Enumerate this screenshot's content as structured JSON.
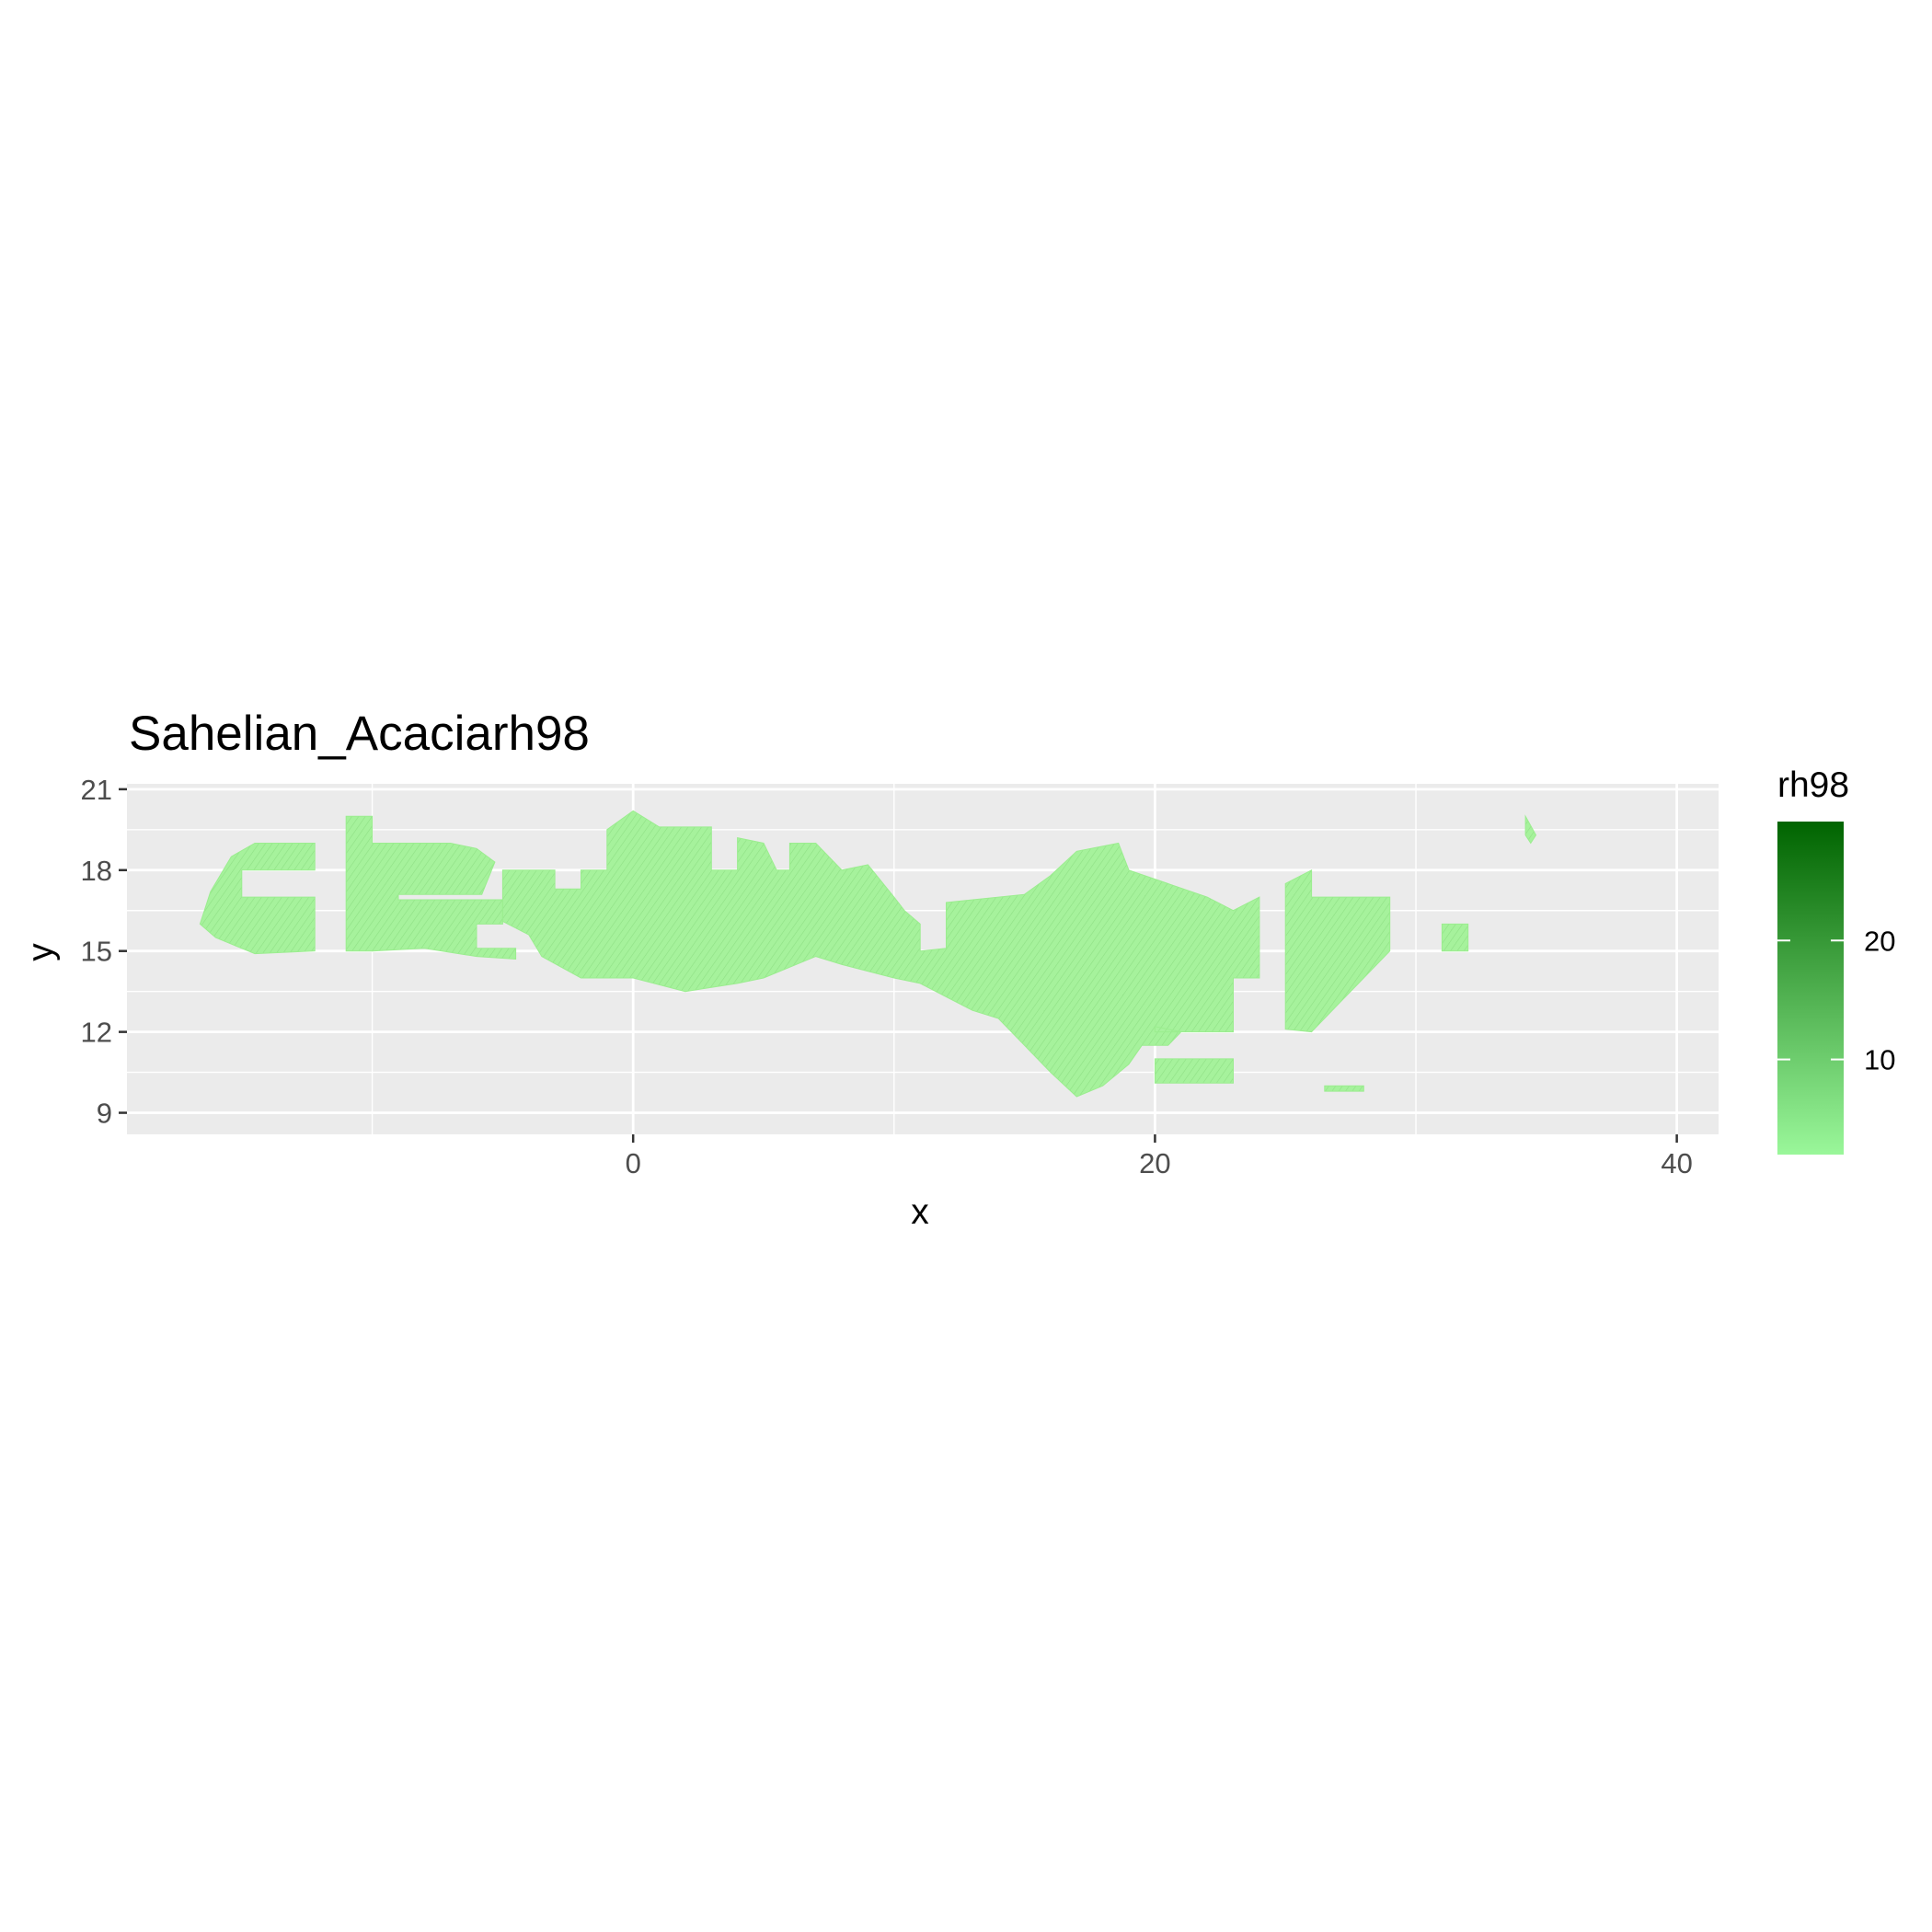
{
  "chart_data": {
    "type": "heatmap",
    "title": "Sahelian_Acaciarh98",
    "xlabel": "x",
    "ylabel": "y",
    "xlim": [
      -19.4,
      41.6
    ],
    "ylim": [
      8.2,
      21.2
    ],
    "x_ticks": [
      0,
      20,
      40
    ],
    "x_tick_labels": [
      "0",
      "20",
      "40"
    ],
    "x_minor_ticks": [
      -10,
      10,
      30
    ],
    "y_ticks": [
      9,
      12,
      15,
      18,
      21
    ],
    "y_tick_labels": [
      "9",
      "12",
      "15",
      "18",
      "21"
    ],
    "y_minor_ticks": [
      10.5,
      13.5,
      16.5,
      19.5
    ],
    "legend": {
      "title": "rh98",
      "min": 2,
      "max": 30,
      "ticks": [
        10,
        20
      ],
      "tick_labels": [
        "10",
        "20"
      ],
      "low_color": "#9af79a",
      "high_color": "#006400",
      "placement": "right"
    },
    "raster_color": "#9bed8f",
    "raster_dark_color": "#5fc35a",
    "regions": [
      {
        "name": "western-blob",
        "polygon": [
          [
            -16.6,
            16.0
          ],
          [
            -16.2,
            17.2
          ],
          [
            -15.4,
            18.5
          ],
          [
            -14.5,
            19.0
          ],
          [
            -12.2,
            19.0
          ],
          [
            -12.2,
            18.0
          ],
          [
            -15.0,
            18.0
          ],
          [
            -15.0,
            17.0
          ],
          [
            -12.2,
            17.0
          ],
          [
            -12.2,
            15.0
          ],
          [
            -14.5,
            14.9
          ],
          [
            -16.0,
            15.5
          ]
        ]
      },
      {
        "name": "northwest-block",
        "polygon": [
          [
            -11.0,
            20.0
          ],
          [
            -10.0,
            20.0
          ],
          [
            -10.0,
            19.0
          ],
          [
            -7.0,
            19.0
          ],
          [
            -6.0,
            18.8
          ],
          [
            -5.3,
            18.3
          ],
          [
            -5.8,
            17.1
          ],
          [
            -9.0,
            17.1
          ],
          [
            -9.0,
            16.9
          ],
          [
            -5.0,
            16.9
          ],
          [
            -5.0,
            16.0
          ],
          [
            -6.0,
            16.0
          ],
          [
            -6.0,
            15.1
          ],
          [
            -4.5,
            15.1
          ],
          [
            -4.5,
            14.7
          ],
          [
            -6.0,
            14.8
          ],
          [
            -8.0,
            15.1
          ],
          [
            -10.0,
            15.0
          ],
          [
            -11.0,
            15.0
          ]
        ]
      },
      {
        "name": "niger-bend",
        "polygon": [
          [
            -5.0,
            18.0
          ],
          [
            -3.0,
            18.0
          ],
          [
            -3.0,
            17.3
          ],
          [
            -2.0,
            17.3
          ],
          [
            -2.0,
            18.0
          ],
          [
            -1.0,
            18.0
          ],
          [
            -1.0,
            19.5
          ],
          [
            0.0,
            20.2
          ],
          [
            1.0,
            19.6
          ],
          [
            3.0,
            19.6
          ],
          [
            3.0,
            18.0
          ],
          [
            4.0,
            18.0
          ],
          [
            4.0,
            19.2
          ],
          [
            5.0,
            19.0
          ],
          [
            5.5,
            18.0
          ],
          [
            6.0,
            18.0
          ],
          [
            6.0,
            19.0
          ],
          [
            7.0,
            19.0
          ],
          [
            8.0,
            18.0
          ],
          [
            9.0,
            18.2
          ],
          [
            10.0,
            17.0
          ],
          [
            10.4,
            16.5
          ],
          [
            11.0,
            16.0
          ],
          [
            11.0,
            15.0
          ],
          [
            12.0,
            15.1
          ],
          [
            12.0,
            16.8
          ],
          [
            15.0,
            17.1
          ],
          [
            16.0,
            17.8
          ],
          [
            17.0,
            18.7
          ],
          [
            18.6,
            19.0
          ],
          [
            19.0,
            18.0
          ],
          [
            22.0,
            17.0
          ],
          [
            23.0,
            16.5
          ],
          [
            24.0,
            17.0
          ],
          [
            24.0,
            14.0
          ],
          [
            23.0,
            14.0
          ],
          [
            23.0,
            12.0
          ],
          [
            20.0,
            12.0
          ],
          [
            20.0,
            12.2
          ],
          [
            21.0,
            12.0
          ],
          [
            20.5,
            11.5
          ],
          [
            19.5,
            11.5
          ],
          [
            19.0,
            10.8
          ],
          [
            18.0,
            10.0
          ],
          [
            17.0,
            9.6
          ],
          [
            16.0,
            10.5
          ],
          [
            15.0,
            11.5
          ],
          [
            14.0,
            12.5
          ],
          [
            13.0,
            12.8
          ],
          [
            12.0,
            13.3
          ],
          [
            11.0,
            13.8
          ],
          [
            10.0,
            14.0
          ],
          [
            8.0,
            14.5
          ],
          [
            7.0,
            14.8
          ],
          [
            5.0,
            14.0
          ],
          [
            4.0,
            13.8
          ],
          [
            2.0,
            13.5
          ],
          [
            0.0,
            14.0
          ],
          [
            -2.0,
            14.0
          ],
          [
            -3.5,
            14.8
          ],
          [
            -4.0,
            15.6
          ],
          [
            -5.0,
            16.1
          ]
        ]
      },
      {
        "name": "eastern-block-a",
        "polygon": [
          [
            25.0,
            17.5
          ],
          [
            26.0,
            18.0
          ],
          [
            26.0,
            17.0
          ],
          [
            29.0,
            17.0
          ],
          [
            29.0,
            15.0
          ],
          [
            28.0,
            14.0
          ],
          [
            27.0,
            13.0
          ],
          [
            26.0,
            12.0
          ],
          [
            25.0,
            12.1
          ]
        ]
      },
      {
        "name": "eastern-block-b",
        "polygon": [
          [
            31.0,
            16.0
          ],
          [
            32.0,
            16.0
          ],
          [
            32.0,
            15.0
          ],
          [
            31.0,
            15.0
          ]
        ]
      },
      {
        "name": "southern-strip",
        "polygon": [
          [
            20.0,
            11.0
          ],
          [
            23.0,
            11.0
          ],
          [
            23.0,
            10.1
          ],
          [
            20.0,
            10.1
          ]
        ]
      },
      {
        "name": "far-east-speck",
        "polygon": [
          [
            34.2,
            20.0
          ],
          [
            34.6,
            19.3
          ],
          [
            34.4,
            19.0
          ],
          [
            34.2,
            19.3
          ]
        ]
      },
      {
        "name": "thin-strip",
        "polygon": [
          [
            26.5,
            10.0
          ],
          [
            28.0,
            10.0
          ],
          [
            28.0,
            9.8
          ],
          [
            26.5,
            9.8
          ]
        ]
      }
    ]
  }
}
